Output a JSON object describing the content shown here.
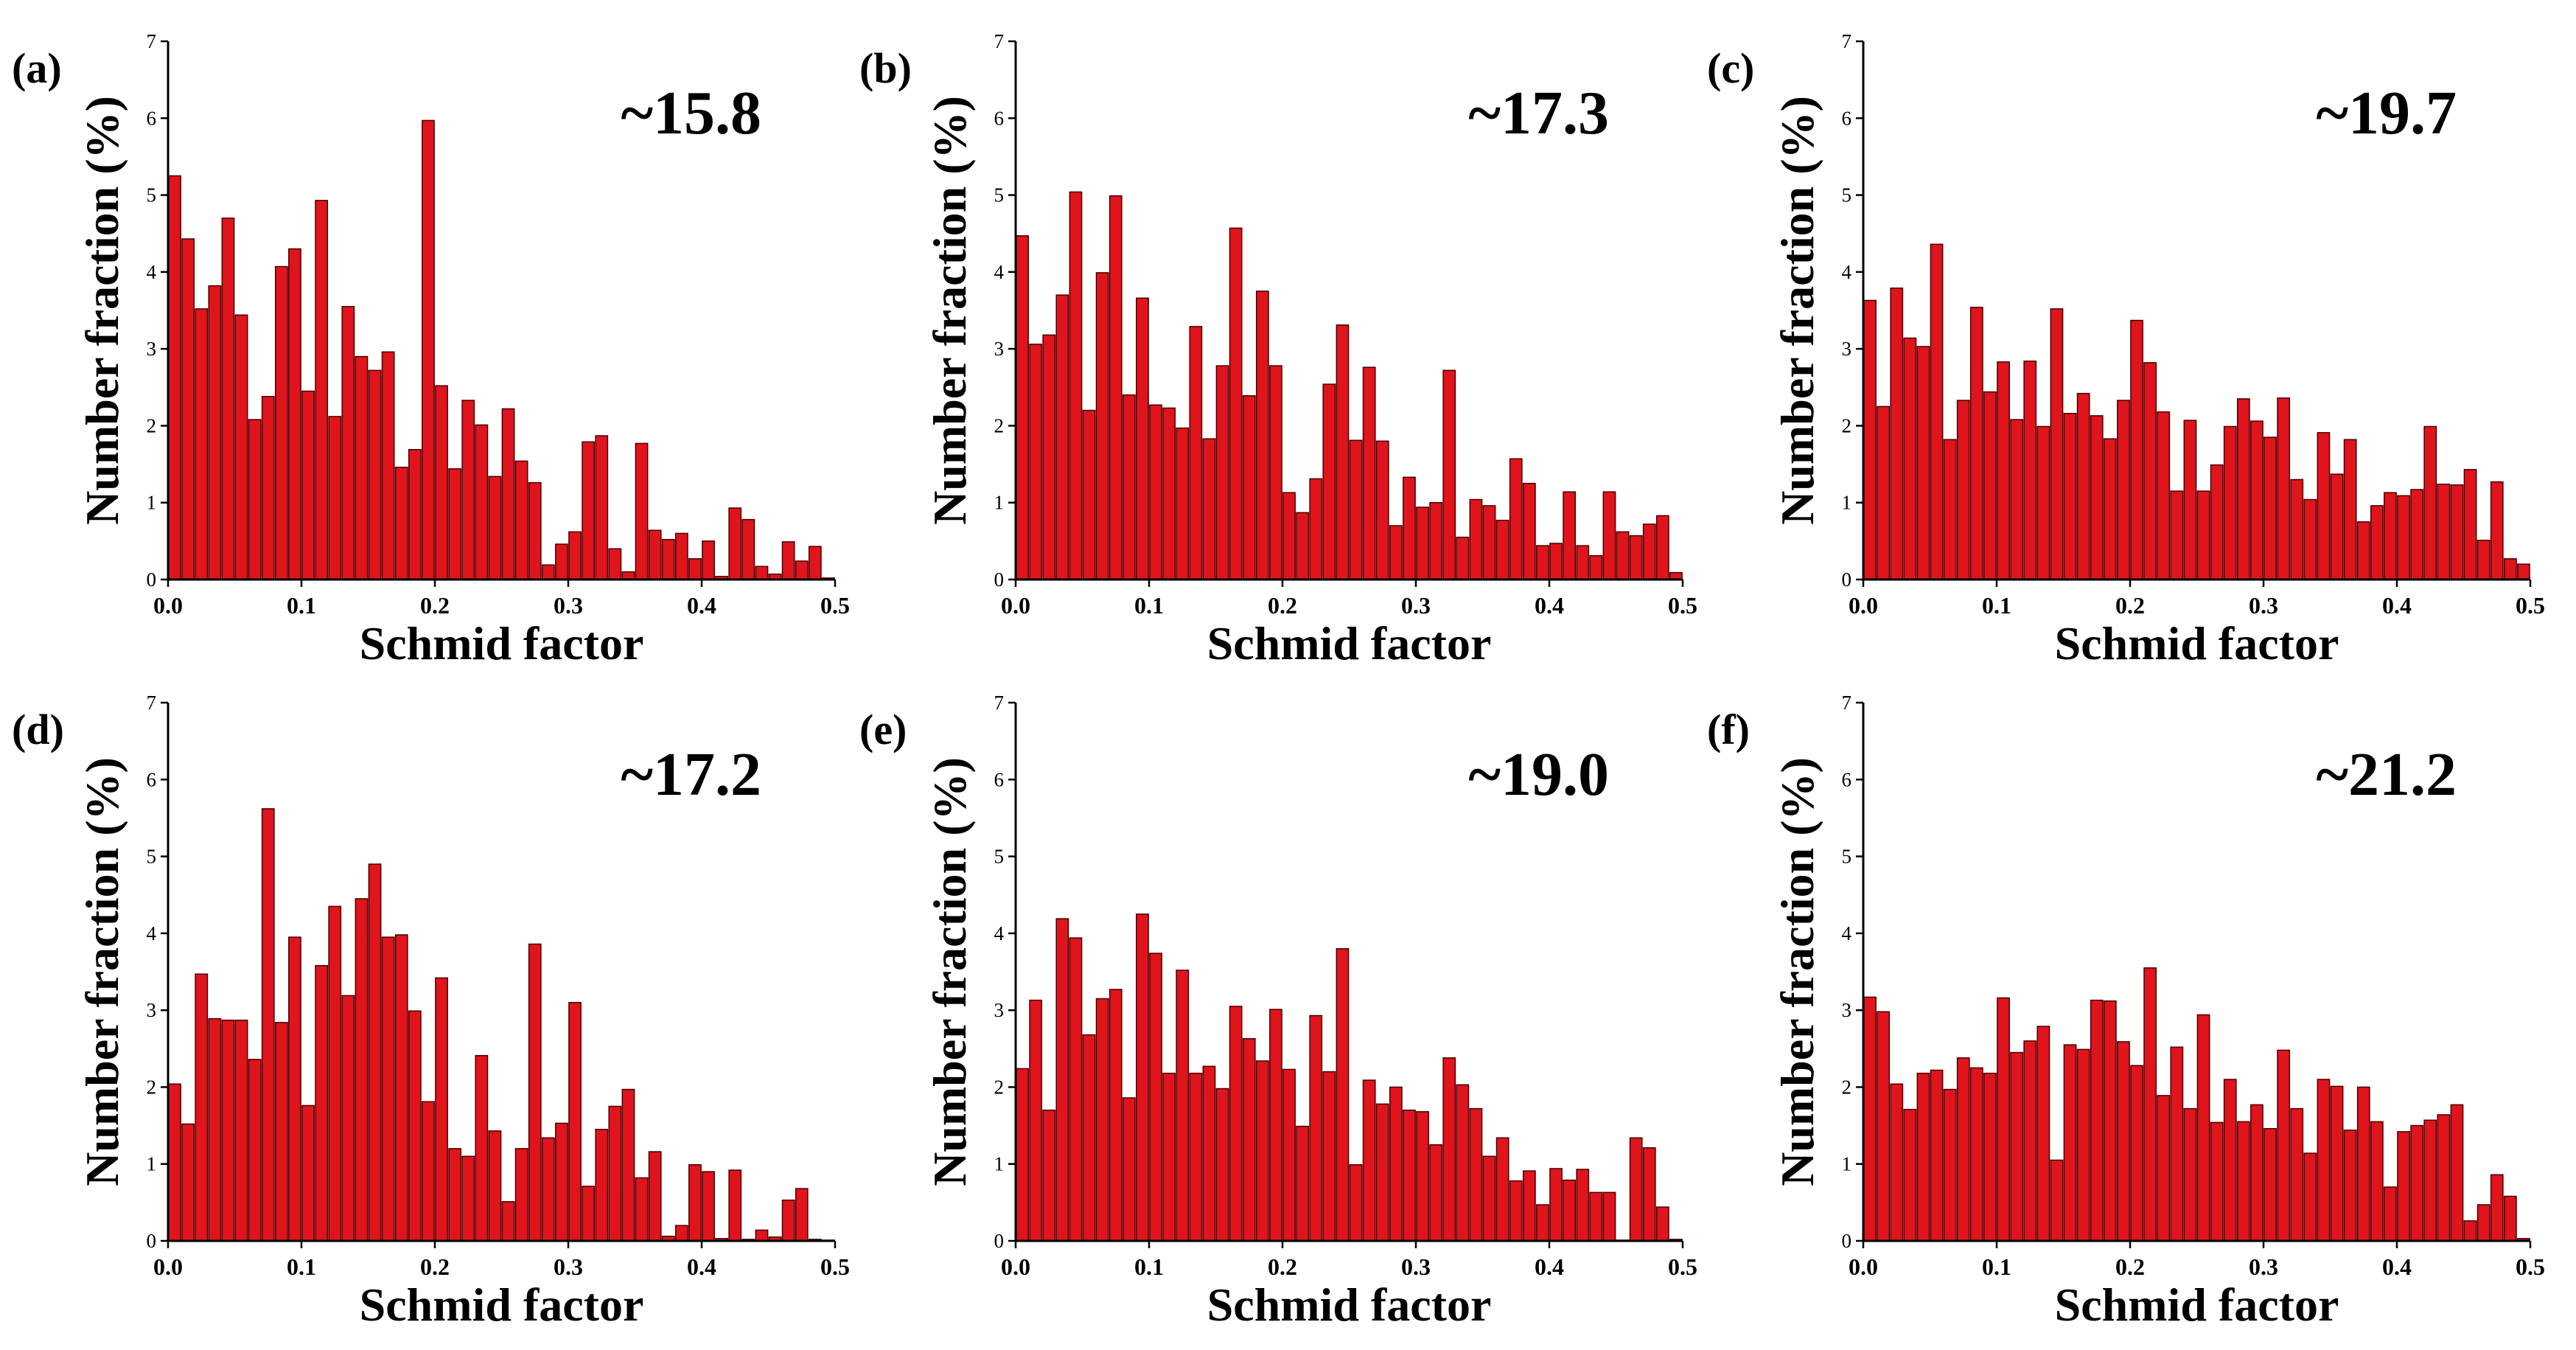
{
  "figure": {
    "bar_color": "#e0141c",
    "bar_edge_color": "#4a0000"
  },
  "chart_data": [
    {
      "type": "bar",
      "panel": "(a)",
      "annotation": "~15.8",
      "xlabel": "Schmid factor",
      "ylabel": "Number fraction (%)",
      "xlim": [
        0.0,
        0.5
      ],
      "ylim": [
        0,
        7
      ],
      "xticks": [
        "0.0",
        "0.1",
        "0.2",
        "0.3",
        "0.4",
        "0.5"
      ],
      "yticks": [
        "0",
        "1",
        "2",
        "3",
        "4",
        "5",
        "6",
        "7"
      ],
      "bin_width": 0.01,
      "values": [
        5.25,
        4.43,
        3.52,
        3.82,
        4.7,
        3.44,
        2.08,
        2.38,
        4.07,
        4.3,
        2.45,
        4.93,
        2.12,
        3.55,
        2.9,
        2.72,
        2.96,
        1.46,
        1.69,
        5.97,
        2.52,
        1.44,
        2.33,
        2.01,
        1.34,
        2.22,
        1.54,
        1.26,
        0.19,
        0.46,
        0.62,
        1.79,
        1.87,
        0.4,
        0.1,
        1.77,
        0.64,
        0.52,
        0.6,
        0.27,
        0.5,
        0.04,
        0.93,
        0.78,
        0.17,
        0.07,
        0.49,
        0.24,
        0.43,
        0.02
      ]
    },
    {
      "type": "bar",
      "panel": "(b)",
      "annotation": "~17.3",
      "xlabel": "Schmid factor",
      "ylabel": "Number fraction (%)",
      "xlim": [
        0.0,
        0.5
      ],
      "ylim": [
        0,
        7
      ],
      "xticks": [
        "0.0",
        "0.1",
        "0.2",
        "0.3",
        "0.4",
        "0.5"
      ],
      "yticks": [
        "0",
        "1",
        "2",
        "3",
        "4",
        "5",
        "6",
        "7"
      ],
      "bin_width": 0.01,
      "values": [
        4.47,
        3.06,
        3.18,
        3.7,
        5.04,
        2.2,
        3.99,
        4.99,
        2.4,
        3.66,
        2.27,
        2.23,
        1.97,
        3.29,
        1.83,
        2.78,
        4.57,
        2.39,
        3.75,
        2.78,
        1.13,
        0.87,
        1.31,
        2.54,
        3.31,
        1.81,
        2.76,
        1.8,
        0.7,
        1.33,
        0.94,
        1.0,
        2.72,
        0.55,
        1.04,
        0.96,
        0.77,
        1.57,
        1.25,
        0.44,
        0.47,
        1.14,
        0.44,
        0.31,
        1.14,
        0.62,
        0.57,
        0.72,
        0.83,
        0.09
      ]
    },
    {
      "type": "bar",
      "panel": "(c)",
      "annotation": "~19.7",
      "xlabel": "Schmid factor",
      "ylabel": "Number fraction (%)",
      "xlim": [
        0.0,
        0.5
      ],
      "ylim": [
        0,
        7
      ],
      "xticks": [
        "0.0",
        "0.1",
        "0.2",
        "0.3",
        "0.4",
        "0.5"
      ],
      "yticks": [
        "0",
        "1",
        "2",
        "3",
        "4",
        "5",
        "6",
        "7"
      ],
      "bin_width": 0.01,
      "values": [
        3.63,
        2.25,
        3.79,
        3.14,
        3.03,
        4.36,
        1.82,
        2.33,
        3.54,
        2.44,
        2.83,
        2.08,
        2.84,
        1.99,
        3.52,
        2.16,
        2.42,
        2.13,
        1.83,
        2.33,
        3.37,
        2.82,
        2.18,
        1.15,
        2.07,
        1.15,
        1.49,
        1.99,
        2.35,
        2.06,
        1.85,
        2.36,
        1.3,
        1.04,
        1.91,
        1.37,
        1.82,
        0.75,
        0.96,
        1.13,
        1.09,
        1.17,
        1.99,
        1.24,
        1.23,
        1.43,
        0.51,
        1.27,
        0.27,
        0.2
      ]
    },
    {
      "type": "bar",
      "panel": "(d)",
      "annotation": "~17.2",
      "xlabel": "Schmid factor",
      "ylabel": "Number fraction (%)",
      "xlim": [
        0.0,
        0.5
      ],
      "ylim": [
        0,
        7
      ],
      "xticks": [
        "0.0",
        "0.1",
        "0.2",
        "0.3",
        "0.4",
        "0.5"
      ],
      "yticks": [
        "0",
        "1",
        "2",
        "3",
        "4",
        "5",
        "6",
        "7"
      ],
      "bin_width": 0.01,
      "values": [
        2.04,
        1.52,
        3.47,
        2.89,
        2.87,
        2.87,
        2.36,
        5.62,
        2.84,
        3.95,
        1.76,
        3.58,
        4.35,
        3.19,
        4.45,
        4.9,
        3.95,
        3.98,
        2.99,
        1.81,
        3.42,
        1.2,
        1.1,
        2.41,
        1.43,
        0.51,
        1.2,
        3.86,
        1.34,
        1.53,
        3.1,
        0.71,
        1.45,
        1.75,
        1.97,
        0.82,
        1.16,
        0.06,
        0.2,
        0.99,
        0.9,
        0.03,
        0.92,
        0.02,
        0.14,
        0.05,
        0.53,
        0.68,
        0.02,
        0.01
      ]
    },
    {
      "type": "bar",
      "panel": "(e)",
      "annotation": "~19.0",
      "xlabel": "Schmid factor",
      "ylabel": "Number fraction (%)",
      "xlim": [
        0.0,
        0.5
      ],
      "ylim": [
        0,
        7
      ],
      "xticks": [
        "0.0",
        "0.1",
        "0.2",
        "0.3",
        "0.4",
        "0.5"
      ],
      "yticks": [
        "0",
        "1",
        "2",
        "3",
        "4",
        "5",
        "6",
        "7"
      ],
      "bin_width": 0.01,
      "values": [
        2.24,
        3.13,
        1.7,
        4.19,
        3.94,
        2.68,
        3.15,
        3.27,
        1.86,
        4.25,
        3.74,
        2.18,
        3.52,
        2.18,
        2.27,
        1.98,
        3.05,
        2.63,
        2.34,
        3.01,
        2.23,
        1.49,
        2.93,
        2.2,
        3.8,
        0.99,
        2.09,
        1.78,
        2.0,
        1.7,
        1.68,
        1.25,
        2.38,
        2.03,
        1.72,
        1.1,
        1.34,
        0.78,
        0.91,
        0.47,
        0.94,
        0.79,
        0.93,
        0.63,
        0.63,
        0.01,
        1.34,
        1.21,
        0.44,
        0.02
      ]
    },
    {
      "type": "bar",
      "panel": "(f)",
      "annotation": "~21.2",
      "xlabel": "Schmid factor",
      "ylabel": "Number fraction (%)",
      "xlim": [
        0.0,
        0.5
      ],
      "ylim": [
        0,
        7
      ],
      "xticks": [
        "0.0",
        "0.1",
        "0.2",
        "0.3",
        "0.4",
        "0.5"
      ],
      "yticks": [
        "0",
        "1",
        "2",
        "3",
        "4",
        "5",
        "6",
        "7"
      ],
      "bin_width": 0.01,
      "values": [
        3.17,
        2.98,
        2.04,
        1.71,
        2.18,
        2.22,
        1.97,
        2.38,
        2.25,
        2.18,
        3.16,
        2.45,
        2.6,
        2.79,
        1.05,
        2.55,
        2.49,
        3.13,
        3.12,
        2.59,
        2.28,
        3.55,
        1.89,
        2.52,
        1.72,
        2.94,
        1.54,
        2.1,
        1.55,
        1.77,
        1.46,
        2.48,
        1.72,
        1.14,
        2.1,
        2.01,
        1.44,
        2.0,
        1.55,
        0.7,
        1.42,
        1.5,
        1.57,
        1.64,
        1.77,
        0.26,
        0.47,
        0.86,
        0.58,
        0.03
      ]
    }
  ]
}
